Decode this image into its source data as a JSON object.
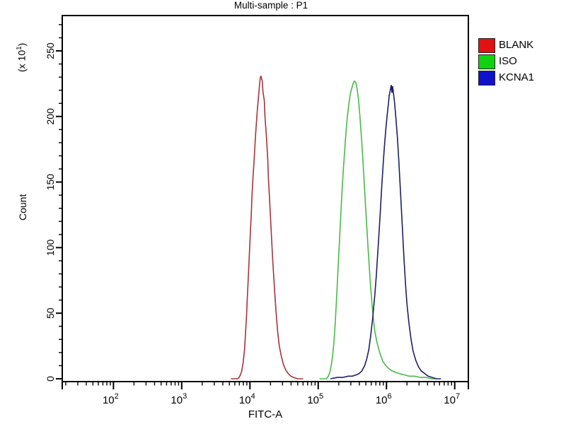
{
  "chart_data": {
    "type": "line",
    "subtype": "flow-cytometry-histogram-overlay",
    "title": "Multi-sample : P1",
    "xlabel": "FITC-A",
    "ylabel": "Count",
    "y_scale_label": {
      "pre": "(x 10",
      "sup": "1",
      "post": ")"
    },
    "x_axis": {
      "scale": "log10",
      "min_log": 1.25,
      "max_log": 7.2,
      "decades": [
        2,
        3,
        4,
        5,
        6,
        7
      ],
      "tick_label_base": "10"
    },
    "y_axis": {
      "min": 0,
      "max": 277,
      "major_step": 50,
      "minor_step": 10,
      "tick_labels": [
        "0",
        "50",
        "100",
        "150",
        "200",
        "250"
      ]
    },
    "grid": false,
    "legend_position": "top-right-outside",
    "frame_color": "#000000",
    "background_color": "#ffffff",
    "series": [
      {
        "name": "BLANK",
        "color": "#a8323c",
        "legend_color": "#e31212",
        "peak": {
          "x_log": 4.16,
          "count": 231
        },
        "points": [
          [
            3.72,
            0
          ],
          [
            3.82,
            0
          ],
          [
            3.84,
            1
          ],
          [
            3.86,
            3
          ],
          [
            3.88,
            6
          ],
          [
            3.9,
            12
          ],
          [
            3.92,
            22
          ],
          [
            3.93,
            30
          ],
          [
            3.95,
            48
          ],
          [
            3.96,
            60
          ],
          [
            3.98,
            82
          ],
          [
            4.0,
            105
          ],
          [
            4.02,
            126
          ],
          [
            4.03,
            140
          ],
          [
            4.05,
            158
          ],
          [
            4.06,
            166
          ],
          [
            4.08,
            184
          ],
          [
            4.09,
            192
          ],
          [
            4.11,
            206
          ],
          [
            4.12,
            212
          ],
          [
            4.14,
            224
          ],
          [
            4.15,
            229
          ],
          [
            4.16,
            231
          ],
          [
            4.18,
            227
          ],
          [
            4.19,
            219
          ],
          [
            4.21,
            212
          ],
          [
            4.22,
            200
          ],
          [
            4.24,
            186
          ],
          [
            4.26,
            168
          ],
          [
            4.27,
            154
          ],
          [
            4.29,
            134
          ],
          [
            4.31,
            114
          ],
          [
            4.33,
            94
          ],
          [
            4.35,
            76
          ],
          [
            4.37,
            60
          ],
          [
            4.39,
            46
          ],
          [
            4.41,
            34
          ],
          [
            4.43,
            25
          ],
          [
            4.46,
            17
          ],
          [
            4.49,
            11
          ],
          [
            4.52,
            7
          ],
          [
            4.56,
            4
          ],
          [
            4.6,
            2
          ],
          [
            4.64,
            1
          ],
          [
            4.7,
            0
          ],
          [
            4.78,
            0
          ]
        ]
      },
      {
        "name": "ISO",
        "color": "#46bb46",
        "legend_color": "#10d210",
        "peak": {
          "x_log": 5.53,
          "count": 227
        },
        "points": [
          [
            5.02,
            0
          ],
          [
            5.12,
            0
          ],
          [
            5.15,
            2
          ],
          [
            5.17,
            5
          ],
          [
            5.19,
            10
          ],
          [
            5.21,
            17
          ],
          [
            5.23,
            28
          ],
          [
            5.25,
            43
          ],
          [
            5.27,
            62
          ],
          [
            5.29,
            83
          ],
          [
            5.31,
            104
          ],
          [
            5.33,
            124
          ],
          [
            5.35,
            144
          ],
          [
            5.37,
            161
          ],
          [
            5.39,
            176
          ],
          [
            5.41,
            190
          ],
          [
            5.43,
            201
          ],
          [
            5.45,
            210
          ],
          [
            5.47,
            217
          ],
          [
            5.49,
            221
          ],
          [
            5.51,
            225
          ],
          [
            5.53,
            227
          ],
          [
            5.55,
            226
          ],
          [
            5.57,
            221
          ],
          [
            5.59,
            213
          ],
          [
            5.61,
            201
          ],
          [
            5.63,
            187
          ],
          [
            5.65,
            171
          ],
          [
            5.67,
            153
          ],
          [
            5.69,
            135
          ],
          [
            5.71,
            117
          ],
          [
            5.73,
            100
          ],
          [
            5.75,
            84
          ],
          [
            5.77,
            69
          ],
          [
            5.79,
            56
          ],
          [
            5.81,
            45
          ],
          [
            5.83,
            36
          ],
          [
            5.86,
            28
          ],
          [
            5.89,
            22
          ],
          [
            5.92,
            17
          ],
          [
            5.95,
            13
          ],
          [
            5.99,
            10
          ],
          [
            6.03,
            8
          ],
          [
            6.08,
            6
          ],
          [
            6.13,
            5
          ],
          [
            6.19,
            4
          ],
          [
            6.26,
            3
          ],
          [
            6.33,
            2
          ],
          [
            6.41,
            2
          ],
          [
            6.5,
            1
          ],
          [
            6.58,
            1
          ],
          [
            6.66,
            0
          ],
          [
            6.74,
            0
          ]
        ]
      },
      {
        "name": "KCNA1",
        "color": "#1e1e64",
        "legend_color": "#1111cc",
        "peak": {
          "x_log": 6.07,
          "count": 224
        },
        "points": [
          [
            5.18,
            0
          ],
          [
            5.28,
            1
          ],
          [
            5.36,
            1
          ],
          [
            5.44,
            2
          ],
          [
            5.5,
            2
          ],
          [
            5.56,
            3
          ],
          [
            5.6,
            4
          ],
          [
            5.64,
            6
          ],
          [
            5.68,
            10
          ],
          [
            5.71,
            15
          ],
          [
            5.74,
            22
          ],
          [
            5.77,
            33
          ],
          [
            5.8,
            47
          ],
          [
            5.83,
            64
          ],
          [
            5.85,
            78
          ],
          [
            5.87,
            94
          ],
          [
            5.89,
            110
          ],
          [
            5.91,
            128
          ],
          [
            5.93,
            146
          ],
          [
            5.95,
            162
          ],
          [
            5.97,
            177
          ],
          [
            5.99,
            190
          ],
          [
            6.01,
            201
          ],
          [
            6.03,
            210
          ],
          [
            6.04,
            216
          ],
          [
            6.06,
            221
          ],
          [
            6.07,
            224
          ],
          [
            6.08,
            218
          ],
          [
            6.09,
            223
          ],
          [
            6.1,
            219
          ],
          [
            6.12,
            210
          ],
          [
            6.14,
            198
          ],
          [
            6.16,
            184
          ],
          [
            6.18,
            167
          ],
          [
            6.2,
            148
          ],
          [
            6.22,
            128
          ],
          [
            6.24,
            108
          ],
          [
            6.26,
            89
          ],
          [
            6.28,
            72
          ],
          [
            6.3,
            57
          ],
          [
            6.33,
            42
          ],
          [
            6.36,
            30
          ],
          [
            6.39,
            21
          ],
          [
            6.43,
            14
          ],
          [
            6.47,
            9
          ],
          [
            6.51,
            6
          ],
          [
            6.56,
            4
          ],
          [
            6.61,
            2
          ],
          [
            6.67,
            1
          ],
          [
            6.73,
            0
          ],
          [
            6.8,
            0
          ]
        ]
      }
    ]
  }
}
